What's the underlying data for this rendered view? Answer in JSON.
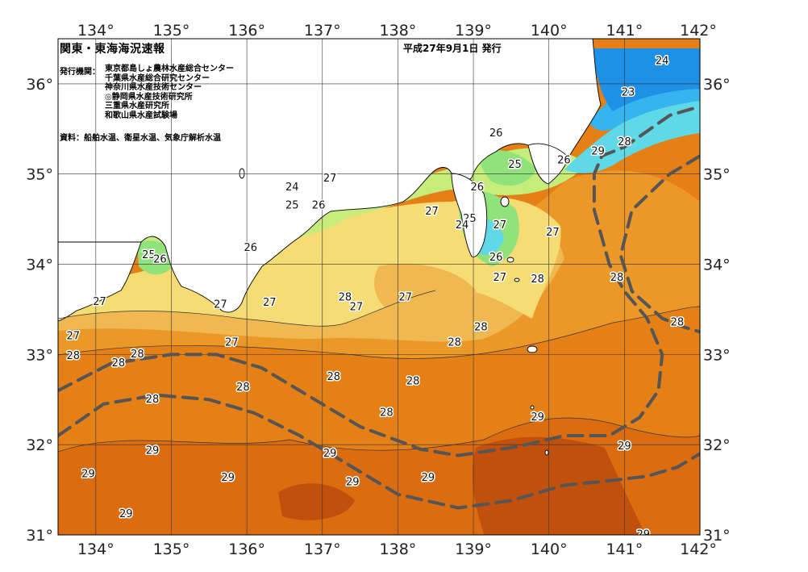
{
  "header": {
    "title": "関東・東海海況速報",
    "date": "平成27年9月1日 発行",
    "issuers_label": "発行機関：",
    "issuers": [
      "東京都島しょ農林水産総合センター",
      "千葉県水産総合研究センター",
      "神奈川県水産技術センター",
      "◎静岡県水産技術研究所",
      "三重県水産研究所",
      "和歌山県水産試験場"
    ],
    "source": "資料：船舶水温、衛星水温、気象庁解析水温"
  },
  "axes": {
    "lon_labels": [
      "134°",
      "135°",
      "136°",
      "137°",
      "138°",
      "139°",
      "140°",
      "141°",
      "142°"
    ],
    "lat_labels": [
      "36°",
      "35°",
      "34°",
      "33°",
      "32°",
      "31°"
    ]
  },
  "map_data": {
    "lon_range": [
      133.5,
      142
    ],
    "lat_range": [
      31,
      36.5
    ],
    "variable": "sea surface temperature",
    "unit": "°C",
    "colors": {
      "t23_below": "#1e90e6",
      "t23": "#36b4ee",
      "t24": "#5fd8e8",
      "t25": "#8fe37a",
      "t26": "#c6ec7c",
      "t27": "#f5dc74",
      "t27_5": "#f0b850",
      "t28": "#ec9828",
      "t28_5": "#e58016",
      "t29": "#db6c10",
      "t29_5": "#c0500c",
      "land": "#ffffff",
      "kuroshio_axis": "#555555"
    },
    "isotherm_labels": [
      {
        "text": "24",
        "lon": 141.5,
        "lat": 36.25
      },
      {
        "text": "23",
        "lon": 141.05,
        "lat": 35.9
      },
      {
        "text": "28",
        "lon": 141.0,
        "lat": 35.35
      },
      {
        "text": "29",
        "lon": 140.65,
        "lat": 35.25
      },
      {
        "text": "26",
        "lon": 139.3,
        "lat": 35.45
      },
      {
        "text": "25",
        "lon": 139.55,
        "lat": 35.1
      },
      {
        "text": "26",
        "lon": 140.2,
        "lat": 35.15
      },
      {
        "text": "27",
        "lon": 137.1,
        "lat": 34.95
      },
      {
        "text": "24",
        "lon": 136.6,
        "lat": 34.85
      },
      {
        "text": "25",
        "lon": 136.6,
        "lat": 34.65
      },
      {
        "text": "26",
        "lon": 136.95,
        "lat": 34.65
      },
      {
        "text": "26",
        "lon": 139.05,
        "lat": 34.85
      },
      {
        "text": "27",
        "lon": 138.45,
        "lat": 34.58
      },
      {
        "text": "25",
        "lon": 138.95,
        "lat": 34.5
      },
      {
        "text": "24",
        "lon": 138.85,
        "lat": 34.43
      },
      {
        "text": "27",
        "lon": 139.35,
        "lat": 34.43
      },
      {
        "text": "27",
        "lon": 140.05,
        "lat": 34.35
      },
      {
        "text": "26",
        "lon": 136.05,
        "lat": 34.18
      },
      {
        "text": "26",
        "lon": 139.3,
        "lat": 34.07
      },
      {
        "text": "25",
        "lon": 134.7,
        "lat": 34.1
      },
      {
        "text": "26",
        "lon": 134.85,
        "lat": 34.05
      },
      {
        "text": "27",
        "lon": 139.35,
        "lat": 33.85
      },
      {
        "text": "28",
        "lon": 139.85,
        "lat": 33.83
      },
      {
        "text": "28",
        "lon": 140.9,
        "lat": 33.85
      },
      {
        "text": "27",
        "lon": 134.05,
        "lat": 33.58
      },
      {
        "text": "27",
        "lon": 135.65,
        "lat": 33.55
      },
      {
        "text": "27",
        "lon": 136.3,
        "lat": 33.57
      },
      {
        "text": "28",
        "lon": 137.3,
        "lat": 33.63
      },
      {
        "text": "27",
        "lon": 137.45,
        "lat": 33.52
      },
      {
        "text": "27",
        "lon": 138.1,
        "lat": 33.63
      },
      {
        "text": "28",
        "lon": 139.1,
        "lat": 33.3
      },
      {
        "text": "28",
        "lon": 141.7,
        "lat": 33.35
      },
      {
        "text": "27",
        "lon": 133.7,
        "lat": 33.2
      },
      {
        "text": "27",
        "lon": 135.8,
        "lat": 33.13
      },
      {
        "text": "28",
        "lon": 138.75,
        "lat": 33.13
      },
      {
        "text": "28",
        "lon": 133.7,
        "lat": 32.98
      },
      {
        "text": "28",
        "lon": 134.3,
        "lat": 32.9
      },
      {
        "text": "28",
        "lon": 134.55,
        "lat": 33.0
      },
      {
        "text": "28",
        "lon": 137.15,
        "lat": 32.75
      },
      {
        "text": "28",
        "lon": 138.2,
        "lat": 32.7
      },
      {
        "text": "28",
        "lon": 135.95,
        "lat": 32.63
      },
      {
        "text": "28",
        "lon": 134.75,
        "lat": 32.5
      },
      {
        "text": "28",
        "lon": 137.85,
        "lat": 32.35
      },
      {
        "text": "29",
        "lon": 139.85,
        "lat": 32.3
      },
      {
        "text": "29",
        "lon": 134.75,
        "lat": 31.93
      },
      {
        "text": "29",
        "lon": 137.1,
        "lat": 31.9
      },
      {
        "text": "29",
        "lon": 141.0,
        "lat": 31.98
      },
      {
        "text": "29",
        "lon": 133.9,
        "lat": 31.67
      },
      {
        "text": "29",
        "lon": 135.75,
        "lat": 31.63
      },
      {
        "text": "29",
        "lon": 137.4,
        "lat": 31.58
      },
      {
        "text": "29",
        "lon": 138.4,
        "lat": 31.63
      },
      {
        "text": "29",
        "lon": 134.4,
        "lat": 31.23
      },
      {
        "text": "29",
        "lon": 141.25,
        "lat": 31.0
      }
    ],
    "kuroshio_axes": [
      [
        [
          133.5,
          32.1
        ],
        [
          134.1,
          32.45
        ],
        [
          134.8,
          32.55
        ],
        [
          135.5,
          32.5
        ],
        [
          136.1,
          32.35
        ],
        [
          136.7,
          32.1
        ],
        [
          137.3,
          31.8
        ],
        [
          138.0,
          31.45
        ],
        [
          138.8,
          31.3
        ],
        [
          139.5,
          31.38
        ],
        [
          140.2,
          31.55
        ],
        [
          140.8,
          31.6
        ],
        [
          141.3,
          31.65
        ],
        [
          141.7,
          31.75
        ],
        [
          142.0,
          31.9
        ]
      ],
      [
        [
          133.5,
          32.6
        ],
        [
          134.2,
          32.9
        ],
        [
          135.0,
          33.0
        ],
        [
          135.6,
          33.0
        ],
        [
          136.2,
          32.85
        ],
        [
          136.8,
          32.55
        ],
        [
          137.5,
          32.2
        ],
        [
          138.3,
          31.95
        ],
        [
          138.8,
          31.88
        ],
        [
          139.6,
          31.98
        ],
        [
          140.2,
          32.1
        ],
        [
          140.8,
          32.1
        ],
        [
          141.2,
          32.3
        ],
        [
          141.45,
          32.6
        ],
        [
          141.5,
          33.0
        ],
        [
          141.3,
          33.4
        ],
        [
          141.0,
          33.7
        ],
        [
          140.8,
          34.0
        ],
        [
          140.7,
          34.3
        ],
        [
          140.6,
          34.6
        ],
        [
          140.6,
          35.0
        ],
        [
          140.7,
          35.2
        ],
        [
          141.0,
          35.3
        ],
        [
          141.6,
          35.65
        ],
        [
          142.0,
          35.75
        ]
      ],
      [
        [
          142.0,
          35.2
        ],
        [
          141.6,
          35.0
        ],
        [
          141.1,
          34.6
        ],
        [
          140.95,
          34.1
        ],
        [
          141.1,
          33.7
        ],
        [
          141.5,
          33.4
        ],
        [
          141.8,
          33.3
        ],
        [
          142.0,
          33.25
        ]
      ]
    ]
  }
}
